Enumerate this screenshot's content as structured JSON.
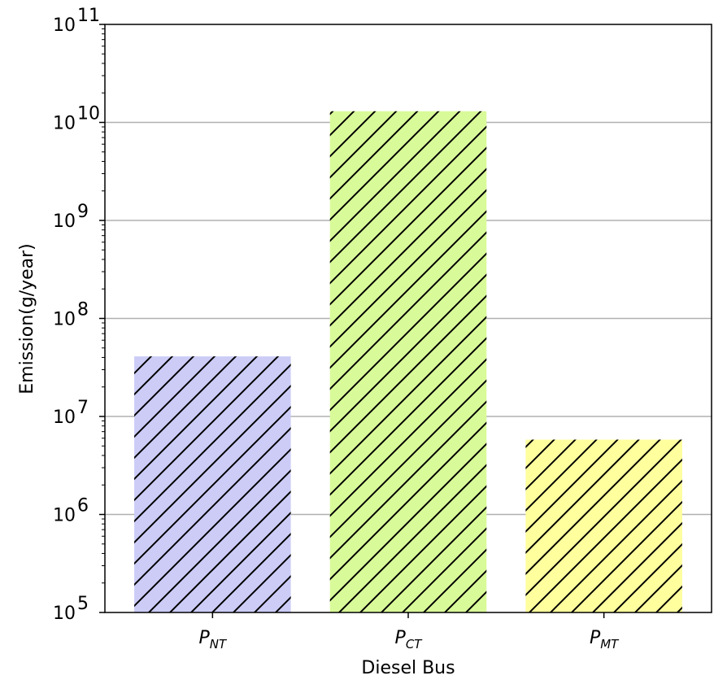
{
  "chart_data": {
    "type": "bar",
    "xlabel": "Diesel Bus",
    "ylabel": "Emission(g/year)",
    "yscale": "log",
    "ylim": [
      100000,
      100000000000
    ],
    "grid": "y-major",
    "categories": [
      {
        "label": "P",
        "sub": "NT"
      },
      {
        "label": "P",
        "sub": "CT"
      },
      {
        "label": "P",
        "sub": "MT"
      }
    ],
    "values": [
      41000000,
      13000000000,
      5800000
    ],
    "colors": [
      "#ccccf7",
      "#d9fa99",
      "#ffff9e"
    ],
    "hatch": "diagonal",
    "yticks": [
      {
        "base": "10",
        "exp": "5"
      },
      {
        "base": "10",
        "exp": "6"
      },
      {
        "base": "10",
        "exp": "7"
      },
      {
        "base": "10",
        "exp": "8"
      },
      {
        "base": "10",
        "exp": "9"
      },
      {
        "base": "10",
        "exp": "10"
      },
      {
        "base": "10",
        "exp": "11"
      }
    ]
  }
}
